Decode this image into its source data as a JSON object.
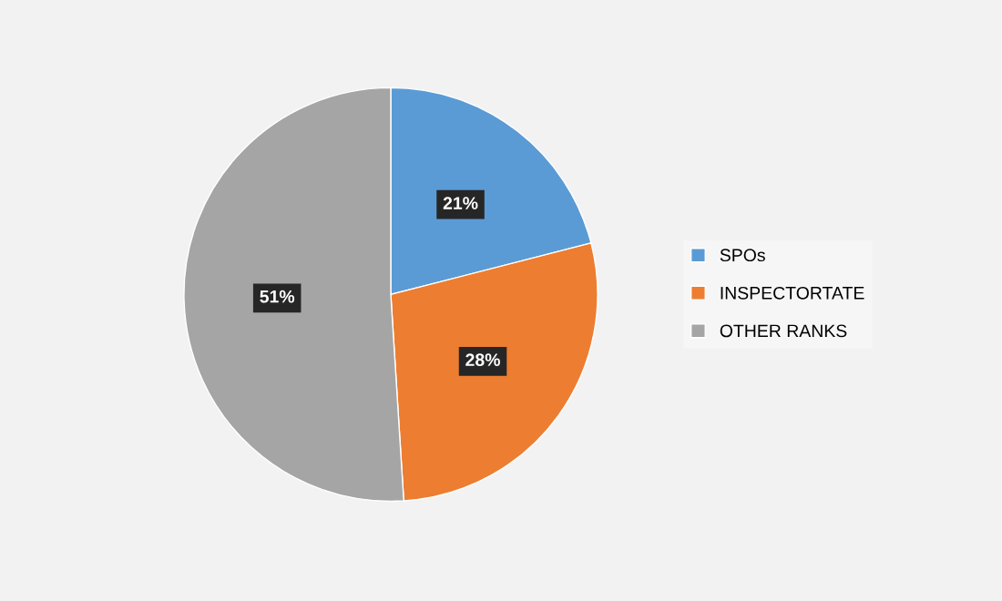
{
  "chart_data": {
    "type": "pie",
    "categories": [
      "SPOs",
      "INSPECTORTATE",
      "OTHER RANKS"
    ],
    "values": [
      21,
      28,
      51
    ],
    "colors": [
      "#5b9bd5",
      "#ed7d31",
      "#a5a5a5"
    ],
    "value_labels": [
      "21%",
      "28%",
      "51%"
    ],
    "legend": "right"
  }
}
